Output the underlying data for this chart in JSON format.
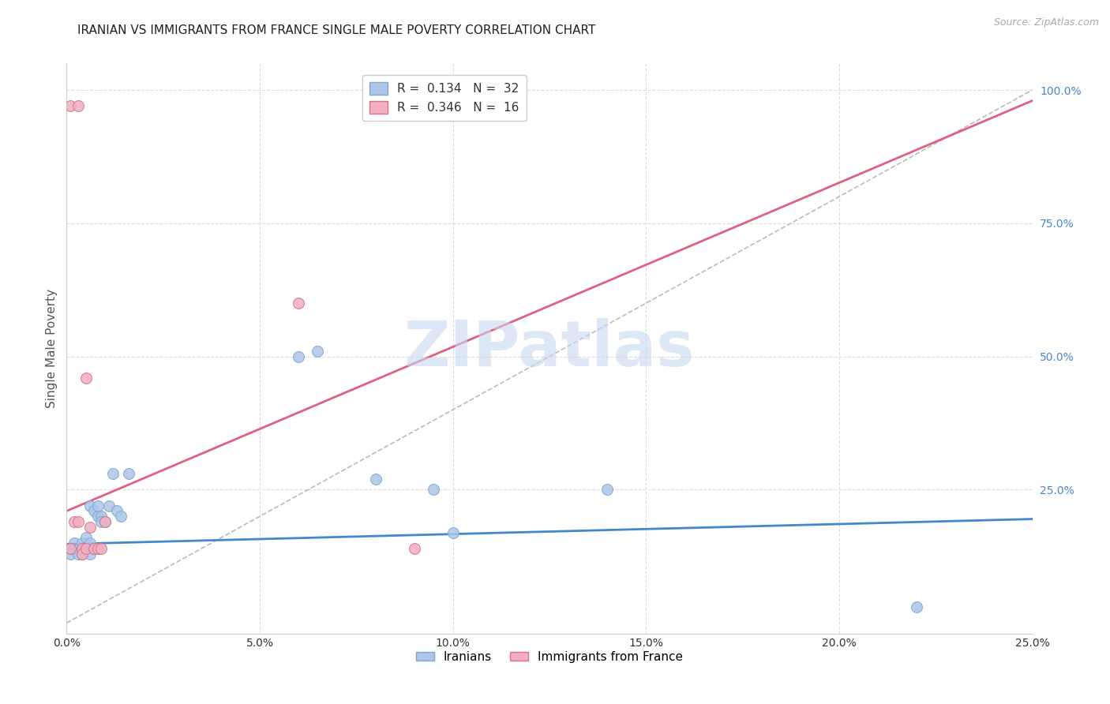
{
  "title": "IRANIAN VS IMMIGRANTS FROM FRANCE SINGLE MALE POVERTY CORRELATION CHART",
  "source": "Source: ZipAtlas.com",
  "xlabel": "",
  "ylabel": "Single Male Poverty",
  "xlim": [
    0.0,
    0.25
  ],
  "ylim": [
    -0.02,
    1.05
  ],
  "xtick_labels": [
    "0.0%",
    "5.0%",
    "10.0%",
    "15.0%",
    "20.0%",
    "25.0%"
  ],
  "xtick_values": [
    0.0,
    0.05,
    0.1,
    0.15,
    0.2,
    0.25
  ],
  "ytick_labels_right": [
    "100.0%",
    "75.0%",
    "50.0%",
    "25.0%"
  ],
  "ytick_values_right": [
    1.0,
    0.75,
    0.5,
    0.25
  ],
  "grid_color": "#dddddd",
  "background_color": "#ffffff",
  "watermark": "ZIPatlas",
  "watermark_color": "#c8d8f0",
  "legend_R1": "0.134",
  "legend_N1": "32",
  "legend_R2": "0.346",
  "legend_N2": "16",
  "iranians_color": "#aec6e8",
  "iranians_edge": "#7aaad0",
  "france_color": "#f0b0c0",
  "france_edge": "#d87090",
  "iranians_line_color": "#4488cc",
  "france_line_color": "#e06080",
  "diagonal_color": "#bbbbbb",
  "iranians_x": [
    0.001,
    0.001,
    0.002,
    0.002,
    0.003,
    0.003,
    0.004,
    0.004,
    0.005,
    0.005,
    0.006,
    0.006,
    0.006,
    0.007,
    0.007,
    0.008,
    0.008,
    0.009,
    0.009,
    0.01,
    0.011,
    0.012,
    0.013,
    0.014,
    0.016,
    0.06,
    0.065,
    0.08,
    0.095,
    0.1,
    0.14,
    0.22
  ],
  "iranians_y": [
    0.14,
    0.13,
    0.15,
    0.14,
    0.14,
    0.13,
    0.15,
    0.13,
    0.16,
    0.14,
    0.15,
    0.13,
    0.22,
    0.21,
    0.14,
    0.2,
    0.22,
    0.2,
    0.19,
    0.19,
    0.22,
    0.28,
    0.21,
    0.2,
    0.28,
    0.5,
    0.51,
    0.27,
    0.25,
    0.17,
    0.25,
    0.03
  ],
  "france_x": [
    0.001,
    0.001,
    0.002,
    0.003,
    0.003,
    0.004,
    0.004,
    0.005,
    0.005,
    0.006,
    0.007,
    0.008,
    0.009,
    0.01,
    0.06,
    0.09
  ],
  "france_y": [
    0.14,
    0.97,
    0.19,
    0.19,
    0.97,
    0.14,
    0.13,
    0.14,
    0.46,
    0.18,
    0.14,
    0.14,
    0.14,
    0.19,
    0.6,
    0.14
  ],
  "marker_size": 100,
  "iran_line_x0": 0.0,
  "iran_line_y0": 0.148,
  "iran_line_x1": 0.25,
  "iran_line_y1": 0.195,
  "france_line_x0": 0.0,
  "france_line_y0": 0.21,
  "france_line_x1": 0.25,
  "france_line_y1": 0.98
}
